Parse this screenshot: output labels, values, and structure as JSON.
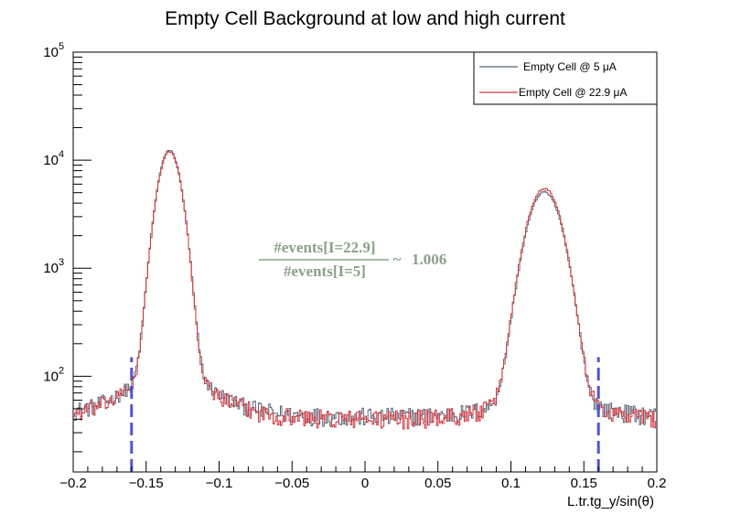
{
  "chart_data": {
    "type": "line",
    "title": "Empty Cell Background at low and high current",
    "xlabel": "L.tr.tg_y/sin(θ)",
    "ylabel": "",
    "xlim": [
      -0.2,
      0.2
    ],
    "ylim": [
      13,
      100000
    ],
    "yscale": "log",
    "grid": false,
    "legend_position": "top-right",
    "x_ticks": [
      -0.2,
      -0.15,
      -0.1,
      -0.05,
      0,
      0.05,
      0.1,
      0.15,
      0.2
    ],
    "x_tick_labels": [
      "−0.2",
      "−0.15",
      "−0.1",
      "−0.05",
      "0",
      "0.05",
      "0.1",
      "0.15",
      "0.2"
    ],
    "y_tick_labels": [
      {
        "value": 100,
        "base": "10",
        "exp": "2"
      },
      {
        "value": 1000,
        "base": "10",
        "exp": "3"
      },
      {
        "value": 10000,
        "base": "10",
        "exp": "4"
      },
      {
        "value": 100000,
        "base": "10",
        "exp": "5"
      }
    ],
    "series": [
      {
        "name": "Empty Cell @ 5 μA",
        "color": "#5a6578",
        "style": "step",
        "peaks": [
          {
            "center": -0.134,
            "height": 12200,
            "sigma": 0.0065
          },
          {
            "center": 0.123,
            "height": 5000,
            "sigma": 0.0095
          }
        ],
        "background_level": 42
      },
      {
        "name": "Empty Cell @ 22.9 μA",
        "color": "#d0343c",
        "style": "step",
        "peaks": [
          {
            "center": -0.134,
            "height": 11800,
            "sigma": 0.0065
          },
          {
            "center": 0.123,
            "height": 5400,
            "sigma": 0.0095
          }
        ],
        "background_level": 40
      }
    ],
    "cut_lines": [
      {
        "x": -0.16,
        "y_top": 150,
        "color": "#5555cc"
      },
      {
        "x": 0.16,
        "y_top": 150,
        "color": "#5555cc"
      }
    ],
    "annotation": {
      "numerator": "#events[I=22.9]",
      "denominator": "#events[I=5]",
      "approx": "~",
      "value": "1.006",
      "color": "#8aa08a"
    }
  }
}
